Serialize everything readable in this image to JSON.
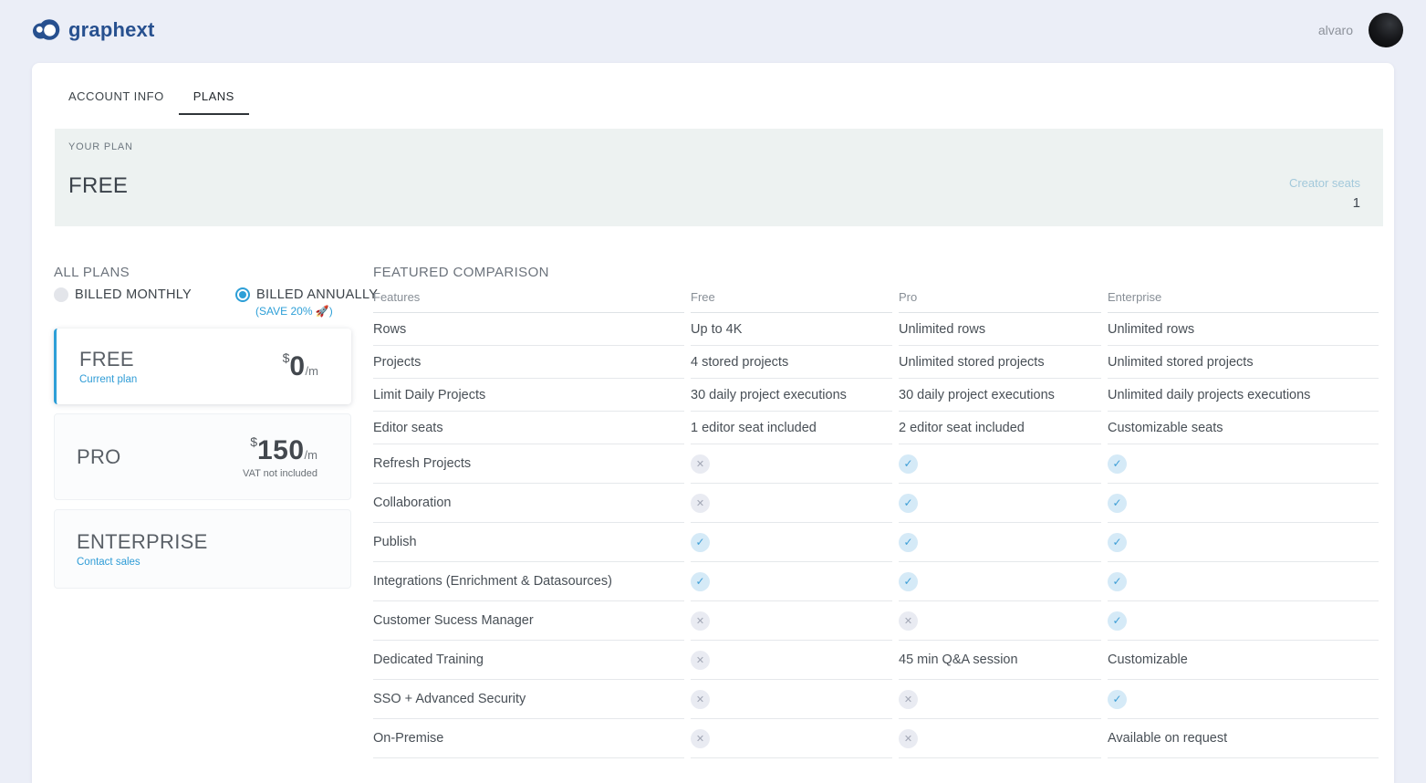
{
  "colors": {
    "brand_blue": "#27508f",
    "accent_blue": "#2d9fd7",
    "banner_bg": "#edf2f1",
    "check_bg": "#d5eaf7",
    "check_fg": "#3e9ed6",
    "cross_bg": "#e9ebf2",
    "cross_fg": "#a2a7b5"
  },
  "icons": {
    "check": "✓",
    "cross": "✕",
    "logo": "graphext-mark",
    "avatar": "user-photo"
  },
  "topbar": {
    "logo_text": "graphext",
    "username": "alvaro"
  },
  "tabs": [
    {
      "label": "ACCOUNT INFO",
      "active": false
    },
    {
      "label": "PLANS",
      "active": true
    }
  ],
  "your_plan": {
    "label": "YOUR PLAN",
    "plan_name": "FREE",
    "seats_label": "Creator seats",
    "seats_value": "1"
  },
  "all_plans": {
    "label": "ALL PLANS",
    "billing_options": [
      {
        "label": "BILLED MONTHLY",
        "selected": false
      },
      {
        "label": "BILLED ANNUALLY",
        "selected": true,
        "note": "(SAVE 20% 🚀)"
      }
    ],
    "cards": [
      {
        "id": "free",
        "name": "FREE",
        "sub": "Current plan",
        "current": true,
        "currency": "$",
        "price": "0",
        "period": "/m"
      },
      {
        "id": "pro",
        "name": "PRO",
        "current": false,
        "currency": "$",
        "price": "150",
        "period": "/m",
        "note": "VAT not included"
      },
      {
        "id": "ent",
        "name": "ENTERPRISE",
        "sub": "Contact sales",
        "current": false
      }
    ]
  },
  "comparison": {
    "title": "FEATURED COMPARISON",
    "columns": [
      "Features",
      "Free",
      "Pro",
      "Enterprise"
    ],
    "rows": [
      {
        "feature": "Rows",
        "free": "Up to 4K",
        "pro": "Unlimited rows",
        "enterprise": "Unlimited rows"
      },
      {
        "feature": "Projects",
        "free": "4 stored projects",
        "pro": "Unlimited stored projects",
        "enterprise": "Unlimited stored projects"
      },
      {
        "feature": "Limit Daily Projects",
        "free": "30 daily project executions",
        "pro": "30 daily project executions",
        "enterprise": "Unlimited daily projects executions"
      },
      {
        "feature": "Editor seats",
        "free": "1 editor seat included",
        "pro": "2 editor seat included",
        "enterprise": "Customizable seats"
      },
      {
        "feature": "Refresh Projects",
        "free": "@cross",
        "pro": "@check",
        "enterprise": "@check"
      },
      {
        "feature": "Collaboration",
        "free": "@cross",
        "pro": "@check",
        "enterprise": "@check"
      },
      {
        "feature": "Publish",
        "free": "@check",
        "pro": "@check",
        "enterprise": "@check"
      },
      {
        "feature": "Integrations (Enrichment & Datasources)",
        "free": "@check",
        "pro": "@check",
        "enterprise": "@check"
      },
      {
        "feature": "Customer Sucess Manager",
        "free": "@cross",
        "pro": "@cross",
        "enterprise": "@check"
      },
      {
        "feature": "Dedicated Training",
        "free": "@cross",
        "pro": "45 min Q&A session",
        "enterprise": "Customizable"
      },
      {
        "feature": "SSO + Advanced Security",
        "free": "@cross",
        "pro": "@cross",
        "enterprise": "@check"
      },
      {
        "feature": "On-Premise",
        "free": "@cross",
        "pro": "@cross",
        "enterprise": "Available on request"
      }
    ]
  }
}
